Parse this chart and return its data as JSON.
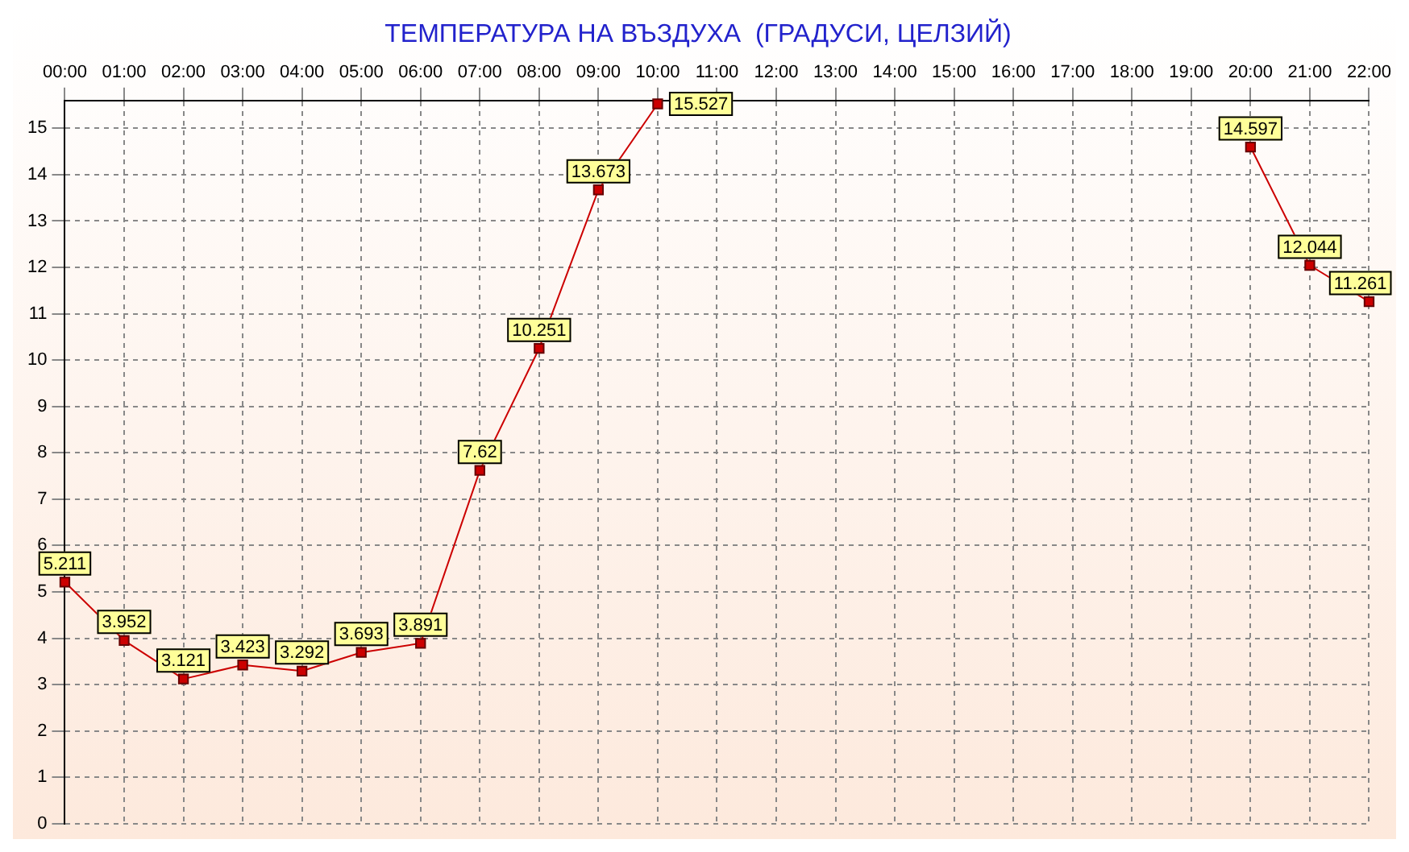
{
  "chart_data": {
    "type": "line",
    "title": "ТЕМПЕРАТУРА НА ВЪЗДУХА  (ГРАДУСИ, ЦЕЛЗИЙ)",
    "categories": [
      "00:00",
      "01:00",
      "02:00",
      "03:00",
      "04:00",
      "05:00",
      "06:00",
      "07:00",
      "08:00",
      "09:00",
      "10:00",
      "11:00",
      "12:00",
      "13:00",
      "14:00",
      "15:00",
      "16:00",
      "17:00",
      "18:00",
      "19:00",
      "20:00",
      "21:00",
      "22:00"
    ],
    "series": [
      {
        "color": "#cc0000",
        "values": [
          5.211,
          3.952,
          3.121,
          3.423,
          3.292,
          3.693,
          3.891,
          7.62,
          10.251,
          13.673,
          15.527,
          null,
          null,
          null,
          null,
          null,
          null,
          null,
          null,
          null,
          14.597,
          12.044,
          11.261
        ]
      }
    ],
    "ylim": [
      0,
      15.6
    ],
    "yticks": [
      0,
      1,
      2,
      3,
      4,
      5,
      6,
      7,
      8,
      9,
      10,
      11,
      12,
      13,
      14,
      15
    ],
    "grid": true,
    "marker": "square",
    "line_style": "solid",
    "data_labels": true
  }
}
